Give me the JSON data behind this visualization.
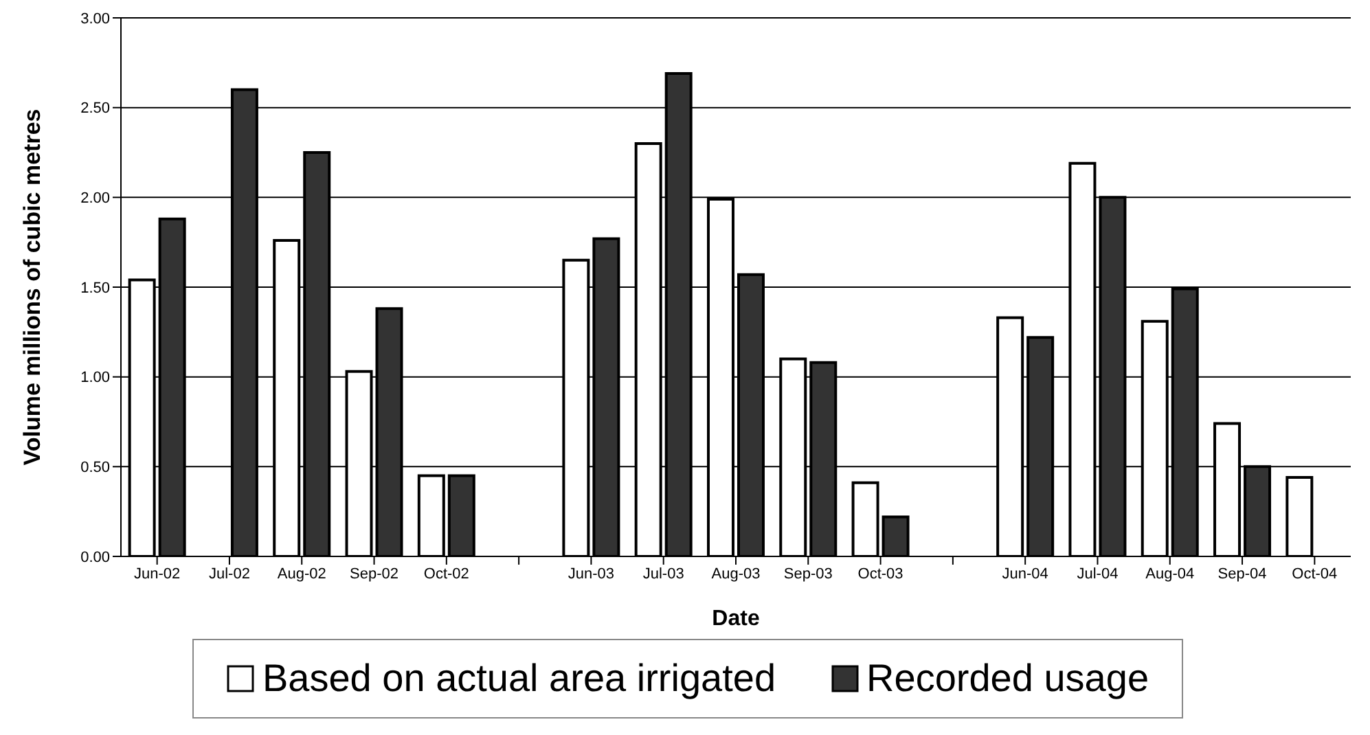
{
  "chart_data": {
    "type": "bar",
    "xlabel": "Date",
    "ylabel": "Volume millions of cubic metres",
    "categories": [
      "Jun-02",
      "Jul-02",
      "Aug-02",
      "Sep-02",
      "Oct-02",
      null,
      "Jun-03",
      "Jul-03",
      "Aug-03",
      "Sep-03",
      "Oct-03",
      null,
      "Jun-04",
      "Jul-04",
      "Aug-04",
      "Sep-04",
      "Oct-04"
    ],
    "series": [
      {
        "name": "Based on actual area irrigated",
        "color": "#ffffff",
        "values": [
          1.54,
          null,
          1.76,
          1.03,
          0.45,
          null,
          1.65,
          2.3,
          1.99,
          1.1,
          0.41,
          null,
          1.33,
          2.19,
          1.31,
          0.74,
          0.44
        ]
      },
      {
        "name": "Recorded usage",
        "color": "#333333",
        "values": [
          1.88,
          2.6,
          2.25,
          1.38,
          0.45,
          null,
          1.77,
          2.69,
          1.57,
          1.08,
          0.22,
          null,
          1.22,
          2.0,
          1.49,
          0.5,
          null
        ]
      }
    ],
    "ylim": [
      0,
      3
    ],
    "yticks": [
      {
        "value": 0,
        "label": "0.00"
      },
      {
        "value": 0.5,
        "label": "0.50"
      },
      {
        "value": 1,
        "label": "1.00"
      },
      {
        "value": 1.5,
        "label": "1.50"
      },
      {
        "value": 2,
        "label": "2.00"
      },
      {
        "value": 2.5,
        "label": "2.50"
      },
      {
        "value": 3,
        "label": "3.00"
      }
    ],
    "grid": "y",
    "legend": "bottom"
  }
}
